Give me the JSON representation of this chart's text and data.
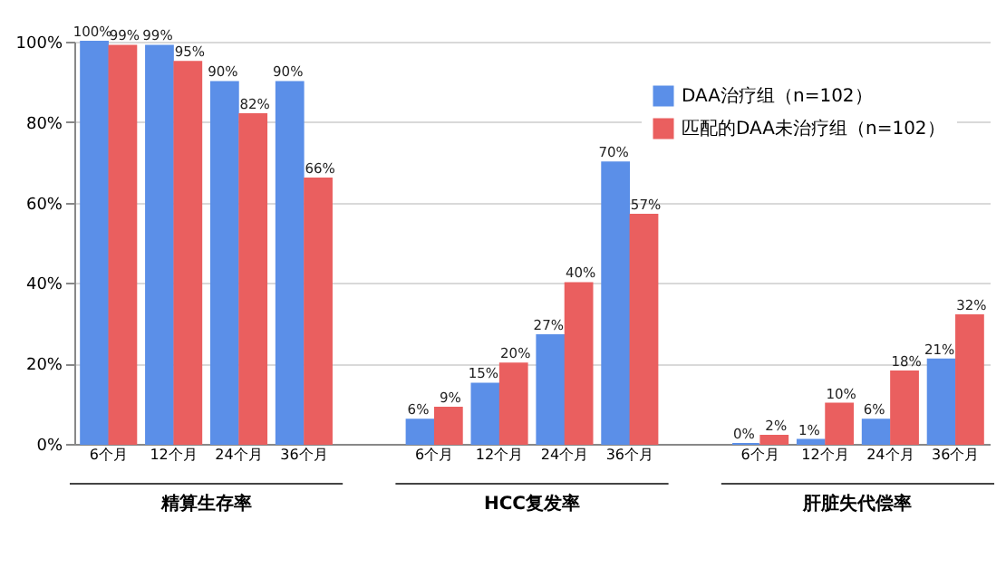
{
  "chart_data": {
    "type": "bar",
    "categories": [
      "6个月",
      "12个月",
      "24个月",
      "36个月",
      null,
      "6个月",
      "12个月",
      "24个月",
      "36个月",
      null,
      "6个月",
      "12个月",
      "24个月",
      "36个月"
    ],
    "series": [
      {
        "name": "DAA治疗组（n=102）",
        "color": "#5b8fe8",
        "values": [
          100,
          99,
          90,
          90,
          null,
          6,
          15,
          27,
          70,
          null,
          0,
          1,
          6,
          21
        ],
        "value_labels": [
          "100%",
          "99%",
          "90%",
          "90%",
          null,
          "6%",
          "15%",
          "27%",
          "70%",
          null,
          "0%",
          "1%",
          "6%",
          "21%"
        ]
      },
      {
        "name": "匹配的DAA未治疗组（n=102）",
        "color": "#ea5f5f",
        "values": [
          99,
          95,
          82,
          66,
          null,
          9,
          20,
          40,
          57,
          null,
          2,
          10,
          18,
          32
        ],
        "value_labels": [
          "99%",
          "95%",
          "82%",
          "66%",
          null,
          "9%",
          "20%",
          "40%",
          "57%",
          null,
          "2%",
          "10%",
          "18%",
          "32%"
        ]
      }
    ],
    "annotations": [
      "精算生存率",
      "HCC复发率",
      "肝脏失代偿率"
    ],
    "ylim": [
      0,
      100
    ],
    "yticks": [
      {
        "value": 0,
        "label": "0%"
      },
      {
        "value": 20,
        "label": "20%"
      },
      {
        "value": 40,
        "label": "40%"
      },
      {
        "value": 60,
        "label": "60%"
      },
      {
        "value": 80,
        "label": "80%"
      },
      {
        "value": 100,
        "label": "100%"
      }
    ],
    "grid": "y",
    "legend": "top right"
  }
}
